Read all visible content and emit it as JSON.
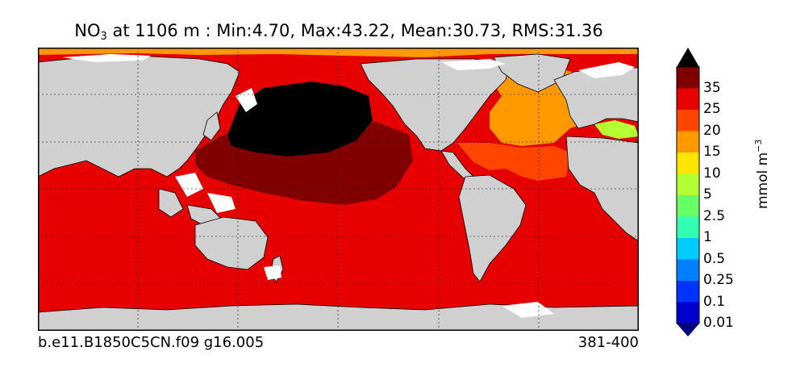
{
  "title": {
    "species": "NO",
    "species_sub": "3",
    "rest": " at 1106 m : Min:4.70, Max:43.22, Mean:30.73, RMS:31.36"
  },
  "footer": {
    "run": "b.e11.B1850C5CN.f09 g16.005",
    "years": "381-400"
  },
  "colorbar": {
    "units_base": "mmol m",
    "units_exp": "−3",
    "tick_labels": [
      "35",
      "25",
      "20",
      "15",
      "10",
      "5",
      "2.5",
      "1",
      "0.5",
      "0.25",
      "0.1",
      "0.01"
    ],
    "colors": [
      "#000000",
      "#800000",
      "#e60000",
      "#ff4500",
      "#ff9900",
      "#ffe600",
      "#b3ff33",
      "#66ff66",
      "#33ffb3",
      "#00ccff",
      "#0080ff",
      "#0033ff",
      "#0000cc",
      "#000080"
    ],
    "extend": "both"
  },
  "map": {
    "projection": "cylindrical",
    "land_color": "#d0d0d0",
    "missing_color": "#ffffff",
    "gridlines": "dashed"
  }
}
